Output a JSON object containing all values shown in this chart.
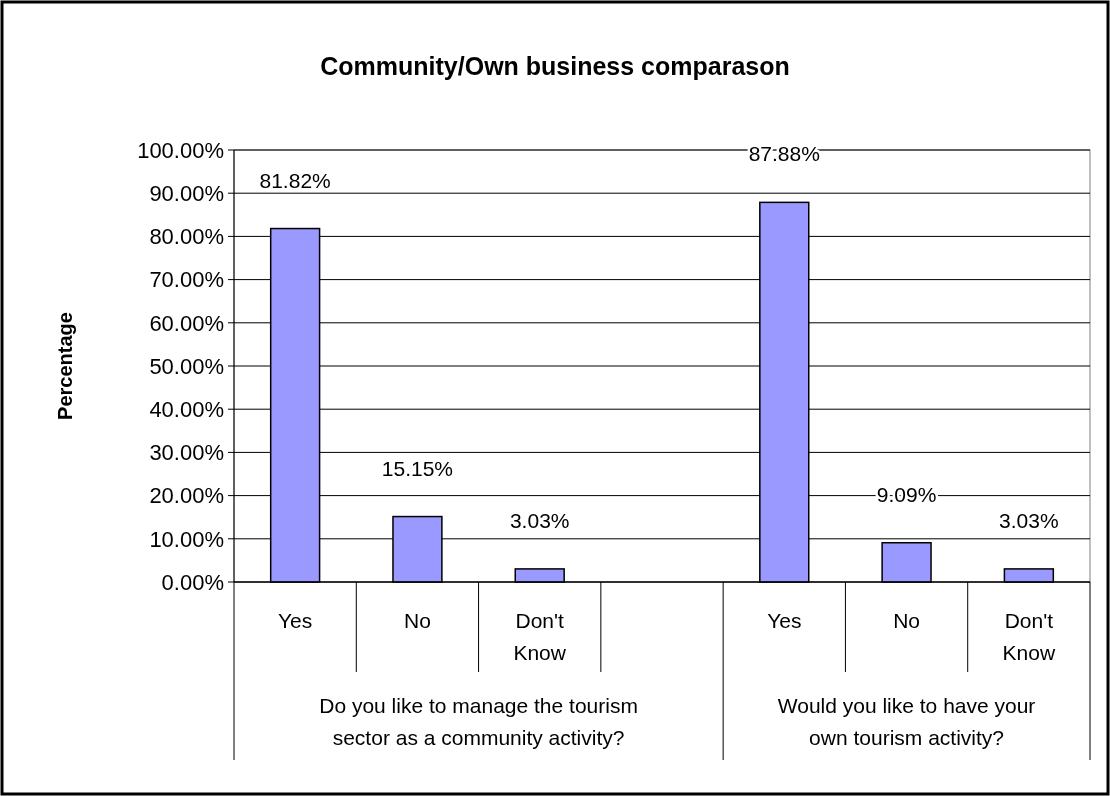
{
  "chart_data": {
    "type": "bar",
    "title": "Community/Own business comparason",
    "ylabel": "Percentage",
    "categories": [
      "Yes",
      "No",
      "Don't Know",
      null,
      "Yes",
      "No",
      "Don't Know"
    ],
    "values": [
      81.82,
      15.15,
      3.03,
      null,
      87.88,
      9.09,
      3.03
    ],
    "value_labels": [
      "81.82%",
      "15.15%",
      "3.03%",
      null,
      "87.88%",
      "9.09%",
      "3.03%"
    ],
    "color": "#9999ff",
    "ylim": [
      0,
      100
    ],
    "yticks": [
      {
        "value": 0,
        "label": "0.00%"
      },
      {
        "value": 10,
        "label": "10.00%"
      },
      {
        "value": 20,
        "label": "20.00%"
      },
      {
        "value": 30,
        "label": "30.00%"
      },
      {
        "value": 40,
        "label": "40.00%"
      },
      {
        "value": 50,
        "label": "50.00%"
      },
      {
        "value": 60,
        "label": "60.00%"
      },
      {
        "value": 70,
        "label": "70.00%"
      },
      {
        "value": 80,
        "label": "80.00%"
      },
      {
        "value": 90,
        "label": "90.00%"
      },
      {
        "value": 100,
        "label": "100.00%"
      }
    ],
    "grid": "y",
    "annotations": [
      "Do you like to manage the tourism sector as a community activity?",
      "Would you like to have your own tourism activity?"
    ]
  }
}
